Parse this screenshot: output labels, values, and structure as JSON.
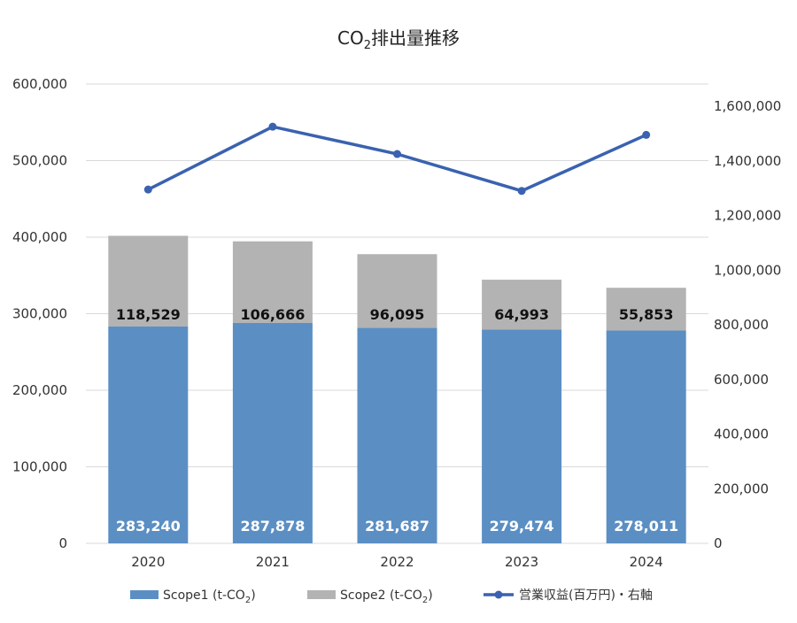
{
  "chart_data": {
    "type": "bar",
    "title_main": "CO",
    "title_sub": "2",
    "title_rest": "排出量推移",
    "categories": [
      "2020",
      "2021",
      "2022",
      "2023",
      "2024"
    ],
    "series": [
      {
        "name": "Scope1 (t-CO₂)",
        "legend_main": "Scope1 (t-CO",
        "legend_sub": "2",
        "legend_end": ")",
        "kind": "stacked-bar",
        "axis": "left",
        "color": "#5b8fc4",
        "values": [
          283240,
          287878,
          281687,
          279474,
          278011
        ],
        "labels": [
          "283,240",
          "287,878",
          "281,687",
          "279,474",
          "278,011"
        ]
      },
      {
        "name": "Scope2 (t-CO₂)",
        "legend_main": "Scope2 (t-CO",
        "legend_sub": "2",
        "legend_end": ")",
        "kind": "stacked-bar",
        "axis": "left",
        "color": "#b3b3b3",
        "values": [
          118529,
          106666,
          96095,
          64993,
          55853
        ],
        "labels": [
          "118,529",
          "106,666",
          "96,095",
          "64,993",
          "55,853"
        ]
      },
      {
        "name": "営業収益(百万円)・右軸",
        "legend_main": "営業収益(百万円)・右軸",
        "kind": "line",
        "axis": "right",
        "color": "#3a62b0",
        "values": [
          1295000,
          1525000,
          1425000,
          1290000,
          1495000
        ]
      }
    ],
    "y_left": {
      "ylim": [
        0,
        600000
      ],
      "ticks": [
        "0",
        "100,000",
        "200,000",
        "300,000",
        "400,000",
        "500,000",
        "600,000"
      ]
    },
    "y_right": {
      "ylim": [
        0,
        1600000
      ],
      "ticks": [
        "0",
        "200,000",
        "400,000",
        "600,000",
        "800,000",
        "1,000,000",
        "1,200,000",
        "1,400,000",
        "1,600,000"
      ]
    },
    "grid": true,
    "legend_position": "bottom"
  }
}
